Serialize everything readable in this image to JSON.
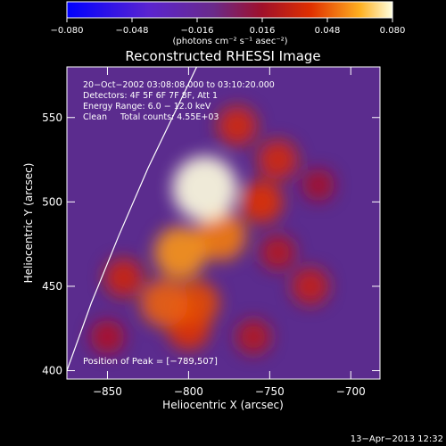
{
  "colorbar": {
    "ticks": [
      "−0.080",
      "−0.048",
      "−0.016",
      "0.016",
      "0.048",
      "0.080"
    ],
    "unit_label": "(photons cm⁻² s⁻¹ asec⁻²)"
  },
  "chart_data": {
    "type": "heatmap",
    "title": "Reconstructed RHESSI Image",
    "xlabel": "Heliocentric X (arcsec)",
    "ylabel": "Heliocentric Y (arcsec)",
    "xlim": [
      -875,
      -682
    ],
    "ylim": [
      395,
      580
    ],
    "x_ticks": [
      -850,
      -800,
      -750,
      -700
    ],
    "x_tick_labels": [
      "−850",
      "−800",
      "−750",
      "−700"
    ],
    "y_ticks": [
      400,
      450,
      500,
      550
    ],
    "y_tick_labels": [
      "400",
      "450",
      "500",
      "550"
    ],
    "colorbar_range": [
      -0.08,
      0.08
    ],
    "info_lines": [
      "20−Oct−2002 03:08:08.000 to 03:10:20.000",
      "Detectors: 4F 5F 6F 7F 8F, Att 1",
      "Energy Range: 6.0 − 12.0 keV",
      "Clean     Total counts: 4.55E+03"
    ],
    "peak_label": "Position of Peak = [−789,507]",
    "peak": [
      -789,
      507
    ],
    "limb_curve": [
      [
        -875,
        400
      ],
      [
        -860,
        440
      ],
      [
        -843,
        480
      ],
      [
        -825,
        520
      ],
      [
        -805,
        560
      ],
      [
        -795,
        580
      ]
    ],
    "sources": [
      {
        "x": -790,
        "y": 508,
        "value": 0.08
      },
      {
        "x": -805,
        "y": 470,
        "value": 0.055
      },
      {
        "x": -780,
        "y": 480,
        "value": 0.05
      },
      {
        "x": -815,
        "y": 440,
        "value": 0.045
      },
      {
        "x": -795,
        "y": 440,
        "value": 0.04
      },
      {
        "x": -800,
        "y": 425,
        "value": 0.035
      },
      {
        "x": -755,
        "y": 500,
        "value": 0.035
      },
      {
        "x": -745,
        "y": 525,
        "value": 0.03
      },
      {
        "x": -770,
        "y": 545,
        "value": 0.03
      },
      {
        "x": -840,
        "y": 455,
        "value": 0.028
      },
      {
        "x": -725,
        "y": 450,
        "value": 0.025
      },
      {
        "x": -760,
        "y": 420,
        "value": 0.02
      },
      {
        "x": -720,
        "y": 510,
        "value": 0.015
      },
      {
        "x": -850,
        "y": 420,
        "value": 0.018
      },
      {
        "x": -745,
        "y": 470,
        "value": 0.02
      }
    ]
  },
  "timestamp": "13−Apr−2013 12:32"
}
